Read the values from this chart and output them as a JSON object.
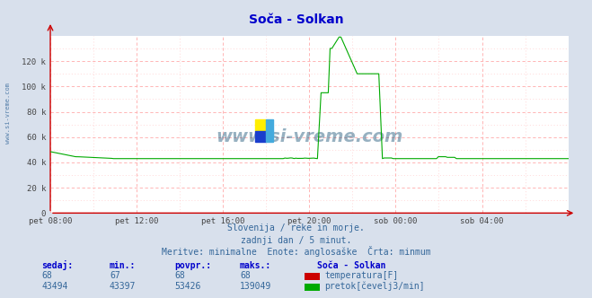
{
  "title": "Soča - Solkan",
  "outer_bg": "#d8e0ec",
  "plot_bg": "#ffffff",
  "grid_h_color": "#ffaaaa",
  "grid_v_color": "#ffaaaa",
  "axis_color": "#cc0000",
  "x_labels": [
    "pet 08:00",
    "pet 12:00",
    "pet 16:00",
    "pet 20:00",
    "sob 00:00",
    "sob 04:00"
  ],
  "x_tick_frac": [
    0.0,
    0.1667,
    0.3333,
    0.5,
    0.6667,
    0.8333
  ],
  "y_ticks": [
    0,
    20000,
    40000,
    60000,
    80000,
    100000,
    120000
  ],
  "y_labels": [
    "0",
    "20 k",
    "40 k",
    "60 k",
    "80 k",
    "100 k",
    "120 k"
  ],
  "ylim": [
    0,
    140000
  ],
  "xlim": [
    0.0,
    1.0
  ],
  "temp_color": "#cc0000",
  "flow_color": "#00aa00",
  "watermark_text": "www.si-vreme.com",
  "watermark_color": "#1a5276",
  "watermark_alpha": 0.45,
  "side_label": "www.si-vreme.com",
  "side_label_color": "#336699",
  "title_color": "#0000cc",
  "subtitle_color": "#336699",
  "subtitle1": "Slovenija / reke in morje.",
  "subtitle2": "zadnji dan / 5 minut.",
  "subtitle3": "Meritve: minimalne  Enote: anglosaške  Črta: minmum",
  "table_headers": [
    "sedaj:",
    "min.:",
    "povpr.:",
    "maks.:"
  ],
  "table_temp_vals": [
    "68",
    "67",
    "68",
    "68"
  ],
  "table_flow_vals": [
    "43494",
    "43397",
    "53426",
    "139049"
  ],
  "legend_station": "Soča - Solkan",
  "legend_temp": "temperatura[F]",
  "legend_flow": "pretok[čevelj3/min]",
  "table_header_color": "#0000cc",
  "table_value_color": "#336699",
  "logo_colors": [
    "#ffee00",
    "#1a44cc",
    "#55bbee",
    "#55bbee"
  ]
}
